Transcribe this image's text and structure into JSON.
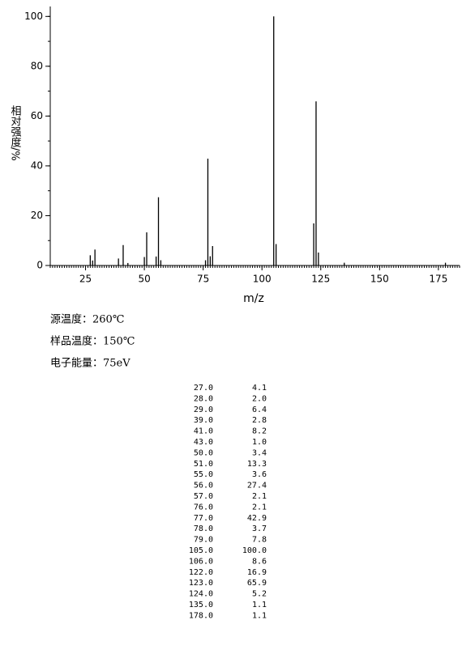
{
  "chart_data": {
    "type": "bar",
    "x_label": "m/z",
    "y_label": "相对强度/%",
    "color": "#000000",
    "x": [
      27,
      28,
      29,
      39,
      41,
      43,
      50,
      51,
      55,
      56,
      57,
      76,
      77,
      78,
      79,
      105,
      106,
      122,
      123,
      124,
      135,
      178
    ],
    "values": [
      4.1,
      2.0,
      6.4,
      2.8,
      8.2,
      1.0,
      3.4,
      13.3,
      3.6,
      27.4,
      2.1,
      2.1,
      42.9,
      3.7,
      7.8,
      100.0,
      8.6,
      16.9,
      65.9,
      5.2,
      1.1,
      1.1
    ],
    "xlim": [
      10,
      184
    ],
    "ylim": [
      0,
      104
    ],
    "xticks": [
      25,
      50,
      75,
      100,
      125,
      150,
      175
    ],
    "yticks": [
      0,
      20,
      40,
      60,
      80,
      100
    ]
  },
  "info": [
    "源温度：260℃",
    "样品温度：150℃",
    "电子能量：75eV"
  ],
  "table": {
    "rows": [
      [
        "27.0",
        "4.1"
      ],
      [
        "28.0",
        "2.0"
      ],
      [
        "29.0",
        "6.4"
      ],
      [
        "39.0",
        "2.8"
      ],
      [
        "41.0",
        "8.2"
      ],
      [
        "43.0",
        "1.0"
      ],
      [
        "50.0",
        "3.4"
      ],
      [
        "51.0",
        "13.3"
      ],
      [
        "55.0",
        "3.6"
      ],
      [
        "56.0",
        "27.4"
      ],
      [
        "57.0",
        "2.1"
      ],
      [
        "76.0",
        "2.1"
      ],
      [
        "77.0",
        "42.9"
      ],
      [
        "78.0",
        "3.7"
      ],
      [
        "79.0",
        "7.8"
      ],
      [
        "105.0",
        "100.0"
      ],
      [
        "106.0",
        "8.6"
      ],
      [
        "122.0",
        "16.9"
      ],
      [
        "123.0",
        "65.9"
      ],
      [
        "124.0",
        "5.2"
      ],
      [
        "135.0",
        "1.1"
      ],
      [
        "178.0",
        "1.1"
      ]
    ]
  }
}
